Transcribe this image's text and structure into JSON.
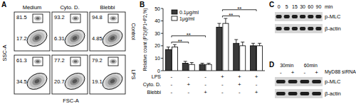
{
  "panel_labels": [
    "A",
    "B",
    "C",
    "D"
  ],
  "flow": {
    "columns": [
      "Medium",
      "Cyto. D.",
      "Blebbi"
    ],
    "rows": [
      {
        "label": "Control",
        "upper": [
          81.5,
          93.2,
          94.8
        ],
        "lower": [
          17.2,
          6.31,
          4.85
        ]
      },
      {
        "label": "LPS",
        "upper": [
          61.3,
          77.2,
          79.2
        ],
        "lower": [
          34.5,
          20.7,
          19.1
        ]
      }
    ],
    "y_label": "SSC-A",
    "x_label": "FSC-A"
  },
  "chart_data": {
    "type": "bar",
    "y_label": "Relative count (P2)/(P1+P2,%)",
    "categories": [
      null,
      null,
      null,
      null,
      null,
      null
    ],
    "series": [
      {
        "name": "0.1μg/ml",
        "color": "#3a3a3a",
        "values": [
          17,
          6,
          5,
          35,
          22,
          20
        ],
        "errors": [
          2,
          1.5,
          1,
          3,
          3,
          2
        ]
      },
      {
        "name": "1μg/ml",
        "color": "#ffffff",
        "values": [
          19,
          5,
          5,
          38,
          20,
          20
        ],
        "errors": [
          2,
          1.5,
          1,
          4,
          3,
          2
        ]
      }
    ],
    "ylim": [
      0,
      50
    ],
    "yticks": [
      0,
      10,
      20,
      30,
      40,
      50
    ],
    "legend": "top-left",
    "conditions": [
      {
        "name": "LPS",
        "values": [
          "-",
          "-",
          "-",
          "+",
          "+",
          "+"
        ]
      },
      {
        "name": "Cyto. D.",
        "values": [
          "-",
          "+",
          "-",
          "-",
          "+",
          "-"
        ]
      },
      {
        "name": "Blebbi",
        "values": [
          "-",
          "-",
          "+",
          "-",
          "-",
          "+"
        ]
      }
    ],
    "annotations": [
      {
        "text": "**",
        "from": 0,
        "to": 1
      },
      {
        "text": "**",
        "from": 0,
        "to": 2
      },
      {
        "text": "**",
        "from": 3,
        "to": 4
      },
      {
        "text": "**",
        "from": 3,
        "to": 5
      }
    ]
  },
  "blot_c": {
    "lanes": [
      "0",
      "5",
      "15",
      "30",
      "60",
      "90"
    ],
    "unit": "min",
    "rows": [
      "p-MLC",
      "β-actin"
    ]
  },
  "blot_d": {
    "times": [
      "30min",
      "60min"
    ],
    "treatment": [
      "-",
      "+",
      "-",
      "+"
    ],
    "treatment_label": "MyD88 siRNA",
    "rows": [
      "p-MLC",
      "β-actin"
    ]
  }
}
